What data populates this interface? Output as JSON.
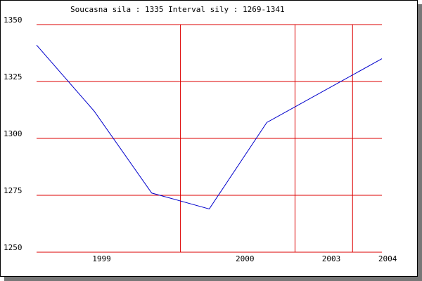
{
  "chart_data": {
    "type": "line",
    "title": "Soucasna sila : 1335  Interval sily : 1269-1341",
    "x": [
      0,
      1,
      2,
      3,
      4,
      5,
      6
    ],
    "series": [
      {
        "color": "#0000cc",
        "values": [
          1341,
          1312,
          1276,
          1269,
          1307,
          1321,
          1335
        ]
      }
    ],
    "xlim": [
      0,
      6
    ],
    "xticks": [
      {
        "value": 1.13,
        "label": "1999"
      },
      {
        "value": 3.62,
        "label": "2000"
      },
      {
        "value": 5.12,
        "label": "2003"
      },
      {
        "value": 6.1,
        "label": "2004"
      }
    ],
    "xgrid": [
      2.5,
      4.49,
      5.49
    ],
    "ylim": [
      1250,
      1350
    ],
    "yticks": [
      1250,
      1275,
      1300,
      1325,
      1350
    ],
    "grid": true,
    "grid_color": "#dd0000"
  }
}
